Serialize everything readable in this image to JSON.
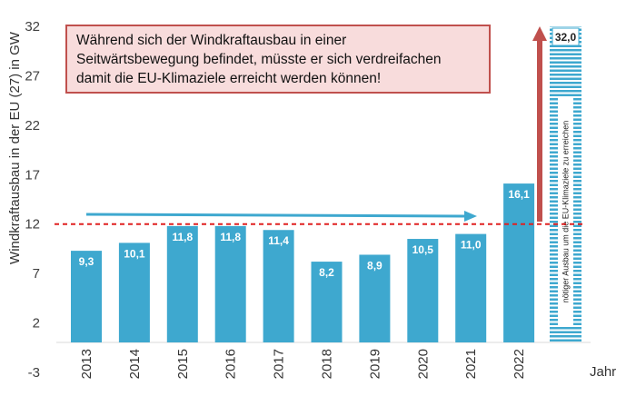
{
  "chart_data": {
    "type": "bar",
    "categories": [
      "2013",
      "2014",
      "2015",
      "2016",
      "2017",
      "2018",
      "2019",
      "2020",
      "2021",
      "2022"
    ],
    "values": [
      9.3,
      10.1,
      11.8,
      11.8,
      11.4,
      8.2,
      8.9,
      10.5,
      11.0,
      16.1
    ],
    "value_labels": [
      "9,3",
      "10,1",
      "11,8",
      "11,8",
      "11,4",
      "8,2",
      "8,9",
      "10,5",
      "11,0",
      "16,1"
    ],
    "target": {
      "value": 32.0,
      "label": "32,0",
      "note": "nötiger Ausbau um die EU-Klimaziele zu erreichen"
    },
    "reference_line": 12,
    "xlabel": "Jahr",
    "ylabel": "Windkraftausbau in der EU (27) in GW",
    "ylim": [
      -3,
      32
    ],
    "yticks": [
      -3,
      2,
      7,
      12,
      17,
      22,
      27,
      32
    ],
    "annotation": [
      "Während sich der Windkraftausbau in einer",
      "Seitwärtsbewegung befindet, müsste er sich verdreifachen",
      "damit die EU-Klimaziele erreicht werden können!"
    ],
    "colors": {
      "bar": "#3ea8cf",
      "trend_arrow": "#3ea8cf",
      "reference": "#e02020",
      "up_arrow": "#c0504d",
      "target_stripes": "#3ea8cf"
    }
  }
}
